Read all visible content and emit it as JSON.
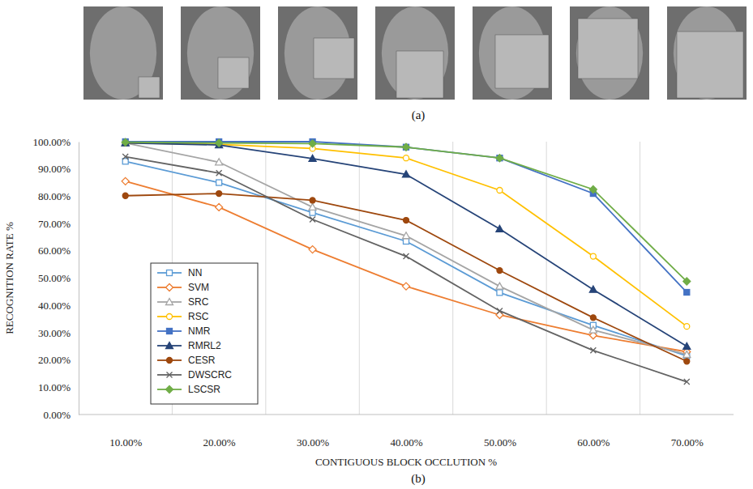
{
  "chart_data": {
    "type": "line",
    "x_label": "CONTIGUOUS BLOCK OCCLUTION %",
    "y_label": "RECOGNITION RATE %",
    "annotations": [
      "(a)",
      "(b)"
    ],
    "categories": [
      "10.00%",
      "20.00%",
      "30.00%",
      "40.00%",
      "50.00%",
      "60.00%",
      "70.00%"
    ],
    "ylim": [
      0,
      100
    ],
    "yticks": [
      {
        "value": 0,
        "label": "0.00%"
      },
      {
        "value": 10,
        "label": "10.00%"
      },
      {
        "value": 20,
        "label": "20.00%"
      },
      {
        "value": 30,
        "label": "30.00%"
      },
      {
        "value": 40,
        "label": "40.00%"
      },
      {
        "value": 50,
        "label": "50.00%"
      },
      {
        "value": 60,
        "label": "60.00%"
      },
      {
        "value": 70,
        "label": "70.00%"
      },
      {
        "value": 80,
        "label": "80.00%"
      },
      {
        "value": 90,
        "label": "90.00%"
      },
      {
        "value": 100,
        "label": "100.00%"
      }
    ],
    "grid": true,
    "legend": "lower left",
    "series": [
      {
        "name": "NN",
        "color": "#5b9bd5",
        "marker": "square-open",
        "values": [
          92.8,
          85,
          74,
          63.5,
          44.7,
          32.7,
          21.5
        ]
      },
      {
        "name": "SVM",
        "color": "#ed7d31",
        "marker": "diamond-open",
        "values": [
          85.5,
          76,
          60.5,
          47,
          36.5,
          29,
          23
        ]
      },
      {
        "name": "SRC",
        "color": "#a5a5a5",
        "marker": "triangle-open",
        "values": [
          99.5,
          92.5,
          76,
          65.5,
          47,
          31,
          22
        ]
      },
      {
        "name": "RSC",
        "color": "#ffc000",
        "marker": "circle-open",
        "values": [
          99.5,
          99,
          97.5,
          94,
          82.2,
          58,
          32.3
        ]
      },
      {
        "name": "NMR",
        "color": "#4472c4",
        "marker": "square",
        "values": [
          100,
          100,
          100,
          98,
          94,
          81,
          44.8
        ]
      },
      {
        "name": "RMRL2",
        "color": "#264478",
        "marker": "triangle",
        "values": [
          99.5,
          98.8,
          93.8,
          88,
          68,
          45.8,
          25
        ]
      },
      {
        "name": "CESR",
        "color": "#9e480e",
        "marker": "circle",
        "values": [
          80.2,
          81,
          78.5,
          71.2,
          52.8,
          35.5,
          19.5
        ]
      },
      {
        "name": "DWSCRC",
        "color": "#636363",
        "marker": "x",
        "values": [
          94.5,
          88.5,
          71.5,
          58,
          38,
          23.5,
          12
        ]
      },
      {
        "name": "LSCSR",
        "color": "#70ad47",
        "marker": "diamond",
        "values": [
          99.8,
          99.5,
          99.3,
          98,
          94,
          82.5,
          48.8
        ]
      }
    ]
  }
}
